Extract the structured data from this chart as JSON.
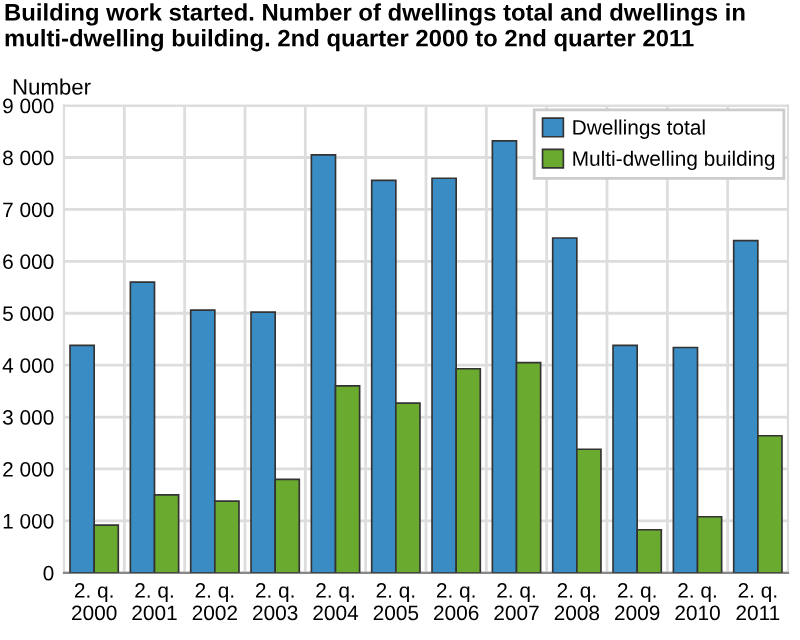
{
  "chart_data": {
    "type": "bar",
    "title": "Building work started. Number of dwellings total and dwellings in multi-dwelling building. 2nd quarter 2000 to 2nd quarter 2011",
    "ylabel": "Number",
    "categories": [
      "2. q.\n2000",
      "2. q.\n2001",
      "2. q.\n2002",
      "2. q.\n2003",
      "2. q.\n2004",
      "2. q.\n2005",
      "2. q.\n2006",
      "2. q.\n2007",
      "2. q.\n2008",
      "2. q.\n2009",
      "2. q.\n2010",
      "2. q.\n2011"
    ],
    "series": [
      {
        "name": "Dwellings total",
        "color": "#3a8cc4",
        "values": [
          4380,
          5600,
          5060,
          5020,
          8050,
          7560,
          7600,
          8320,
          6450,
          4380,
          4340,
          6400
        ]
      },
      {
        "name": "Multi-dwelling building",
        "color": "#6aaa2e",
        "values": [
          920,
          1500,
          1380,
          1800,
          3600,
          3270,
          3930,
          4050,
          2380,
          830,
          1080,
          2640
        ]
      }
    ],
    "ylim": [
      0,
      9000
    ],
    "yticks": [
      0,
      {
        "value": 1000,
        "label": "1 000"
      },
      {
        "value": 2000,
        "label": "2 000"
      },
      {
        "value": 3000,
        "label": "3 000"
      },
      {
        "value": 4000,
        "label": "4 000"
      },
      {
        "value": 5000,
        "label": "5 000"
      },
      {
        "value": 6000,
        "label": "6 000"
      },
      {
        "value": 7000,
        "label": "7 000"
      },
      {
        "value": 8000,
        "label": "8 000"
      },
      {
        "value": 9000,
        "label": "9 000"
      }
    ],
    "grid": true,
    "legend": "top right"
  }
}
